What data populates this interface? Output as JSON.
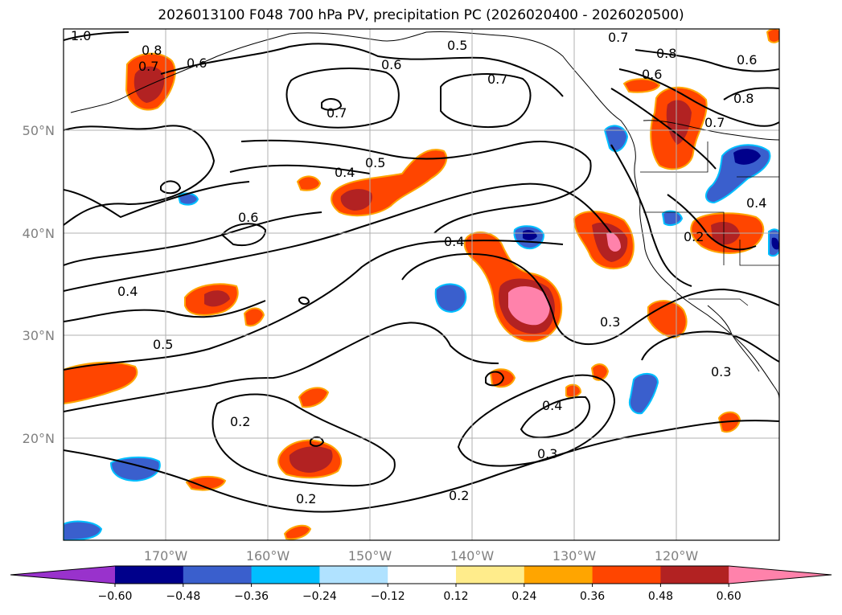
{
  "title": "2026013100 F048 700 hPa PV, precipitation PC (2026020400 - 2026020500)",
  "map": {
    "lon_labels": [
      "170°W",
      "160°W",
      "150°W",
      "140°W",
      "130°W",
      "120°W"
    ],
    "lat_labels": [
      "50°N",
      "40°N",
      "30°N",
      "20°N"
    ],
    "contour_labels": [
      "1.0",
      "0.8",
      "0.7",
      "0.6",
      "0.5",
      "0.6",
      "0.7",
      "0.7",
      "0.7",
      "0.8",
      "0.6",
      "0.6",
      "0.7",
      "0.8",
      "0.5",
      "0.4",
      "0.6",
      "0.4",
      "0.4",
      "0.2",
      "0.5",
      "0.3",
      "0.3",
      "0.4",
      "0.4",
      "0.2",
      "0.3",
      "0.2",
      "0.2"
    ]
  },
  "colorbar": {
    "colors": [
      "#9932CC",
      "#00008B",
      "#3A5FCD",
      "#00BFFF",
      "#B0E2FF",
      "#FFFFFF",
      "#FFEC8B",
      "#FFA500",
      "#FF4500",
      "#B22222",
      "#FF82AB"
    ],
    "tick_labels": [
      "−0.60",
      "−0.48",
      "−0.36",
      "−0.24",
      "−0.12",
      "0.12",
      "0.24",
      "0.36",
      "0.48",
      "0.60"
    ]
  }
}
